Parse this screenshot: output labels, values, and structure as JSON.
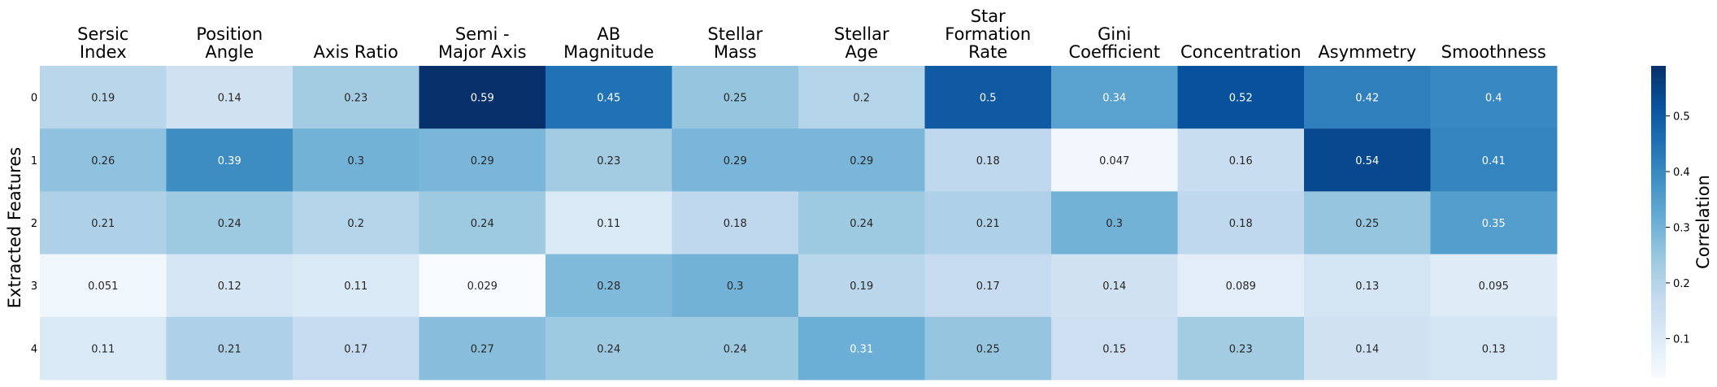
{
  "chart_data": {
    "type": "heatmap",
    "ylabel": "Extracted Features",
    "colorbar_label": "Correlation",
    "colormap": "Blues",
    "vmin": 0.029,
    "vmax": 0.59,
    "colorbar_ticks": [
      "0.1",
      "0.2",
      "0.3",
      "0.4",
      "0.5"
    ],
    "columns": [
      [
        "Sersic",
        "Index"
      ],
      [
        "Position",
        "Angle"
      ],
      [
        "Axis Ratio"
      ],
      [
        "Semi -",
        "Major Axis"
      ],
      [
        "AB",
        "Magnitude"
      ],
      [
        "Stellar",
        "Mass"
      ],
      [
        "Stellar",
        "Age"
      ],
      [
        "Star",
        "Formation",
        "Rate"
      ],
      [
        "Gini",
        "Coefficient"
      ],
      [
        "Concentration"
      ],
      [
        "Asymmetry"
      ],
      [
        "Smoothness"
      ]
    ],
    "rows": [
      "0",
      "1",
      "2",
      "3",
      "4"
    ],
    "cell_labels": [
      [
        "0.19",
        "0.14",
        "0.23",
        "0.59",
        "0.45",
        "0.25",
        "0.2",
        "0.5",
        "0.34",
        "0.52",
        "0.42",
        "0.4"
      ],
      [
        "0.26",
        "0.39",
        "0.3",
        "0.29",
        "0.23",
        "0.29",
        "0.29",
        "0.18",
        "0.047",
        "0.16",
        "0.54",
        "0.41"
      ],
      [
        "0.21",
        "0.24",
        "0.2",
        "0.24",
        "0.11",
        "0.18",
        "0.24",
        "0.21",
        "0.3",
        "0.18",
        "0.25",
        "0.35"
      ],
      [
        "0.051",
        "0.12",
        "0.11",
        "0.029",
        "0.28",
        "0.3",
        "0.19",
        "0.17",
        "0.14",
        "0.089",
        "0.13",
        "0.095"
      ],
      [
        "0.11",
        "0.21",
        "0.17",
        "0.27",
        "0.24",
        "0.24",
        "0.31",
        "0.25",
        "0.15",
        "0.23",
        "0.14",
        "0.13"
      ]
    ]
  }
}
